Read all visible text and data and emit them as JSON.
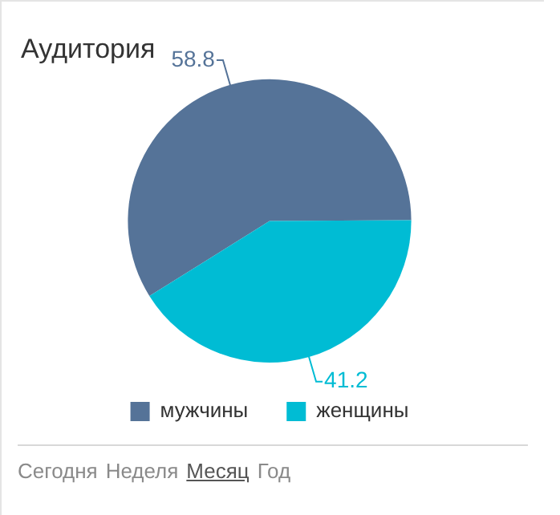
{
  "chart_data": {
    "type": "pie",
    "title": "Аудитория",
    "categories": [
      "мужчины",
      "женщины"
    ],
    "values": [
      58.8,
      41.2
    ],
    "colors": [
      "#557398",
      "#00bcd4"
    ],
    "data_labels": true,
    "legend": "bottom",
    "annotations": [
      "Сегодня",
      "Неделя",
      "Месяц",
      "Год"
    ]
  }
}
